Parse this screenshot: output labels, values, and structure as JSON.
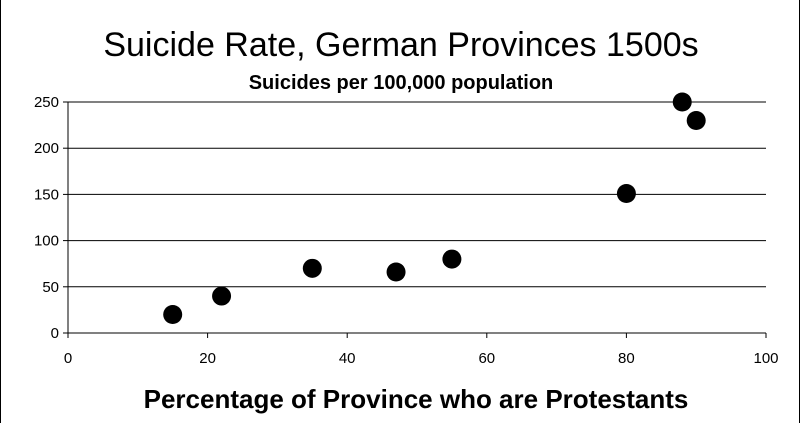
{
  "chart_data": {
    "type": "scatter",
    "title": "Suicide Rate, German Provinces 1500s",
    "subtitle": "Suicides per 100,000 population",
    "xlabel": "Percentage of Province who are Protestants",
    "ylabel": "",
    "xlim": [
      0,
      100
    ],
    "ylim": [
      0,
      250
    ],
    "xticks": [
      "0",
      "20",
      "40",
      "60",
      "80",
      "100"
    ],
    "yticks": [
      "0",
      "50",
      "100",
      "150",
      "200",
      "250"
    ],
    "grid": "horizontal",
    "marker_color": "#000000",
    "points": [
      {
        "x": 15,
        "y": 20
      },
      {
        "x": 22,
        "y": 40
      },
      {
        "x": 35,
        "y": 70
      },
      {
        "x": 47,
        "y": 66
      },
      {
        "x": 55,
        "y": 80
      },
      {
        "x": 80,
        "y": 151
      },
      {
        "x": 88,
        "y": 250
      },
      {
        "x": 90,
        "y": 230
      }
    ]
  }
}
